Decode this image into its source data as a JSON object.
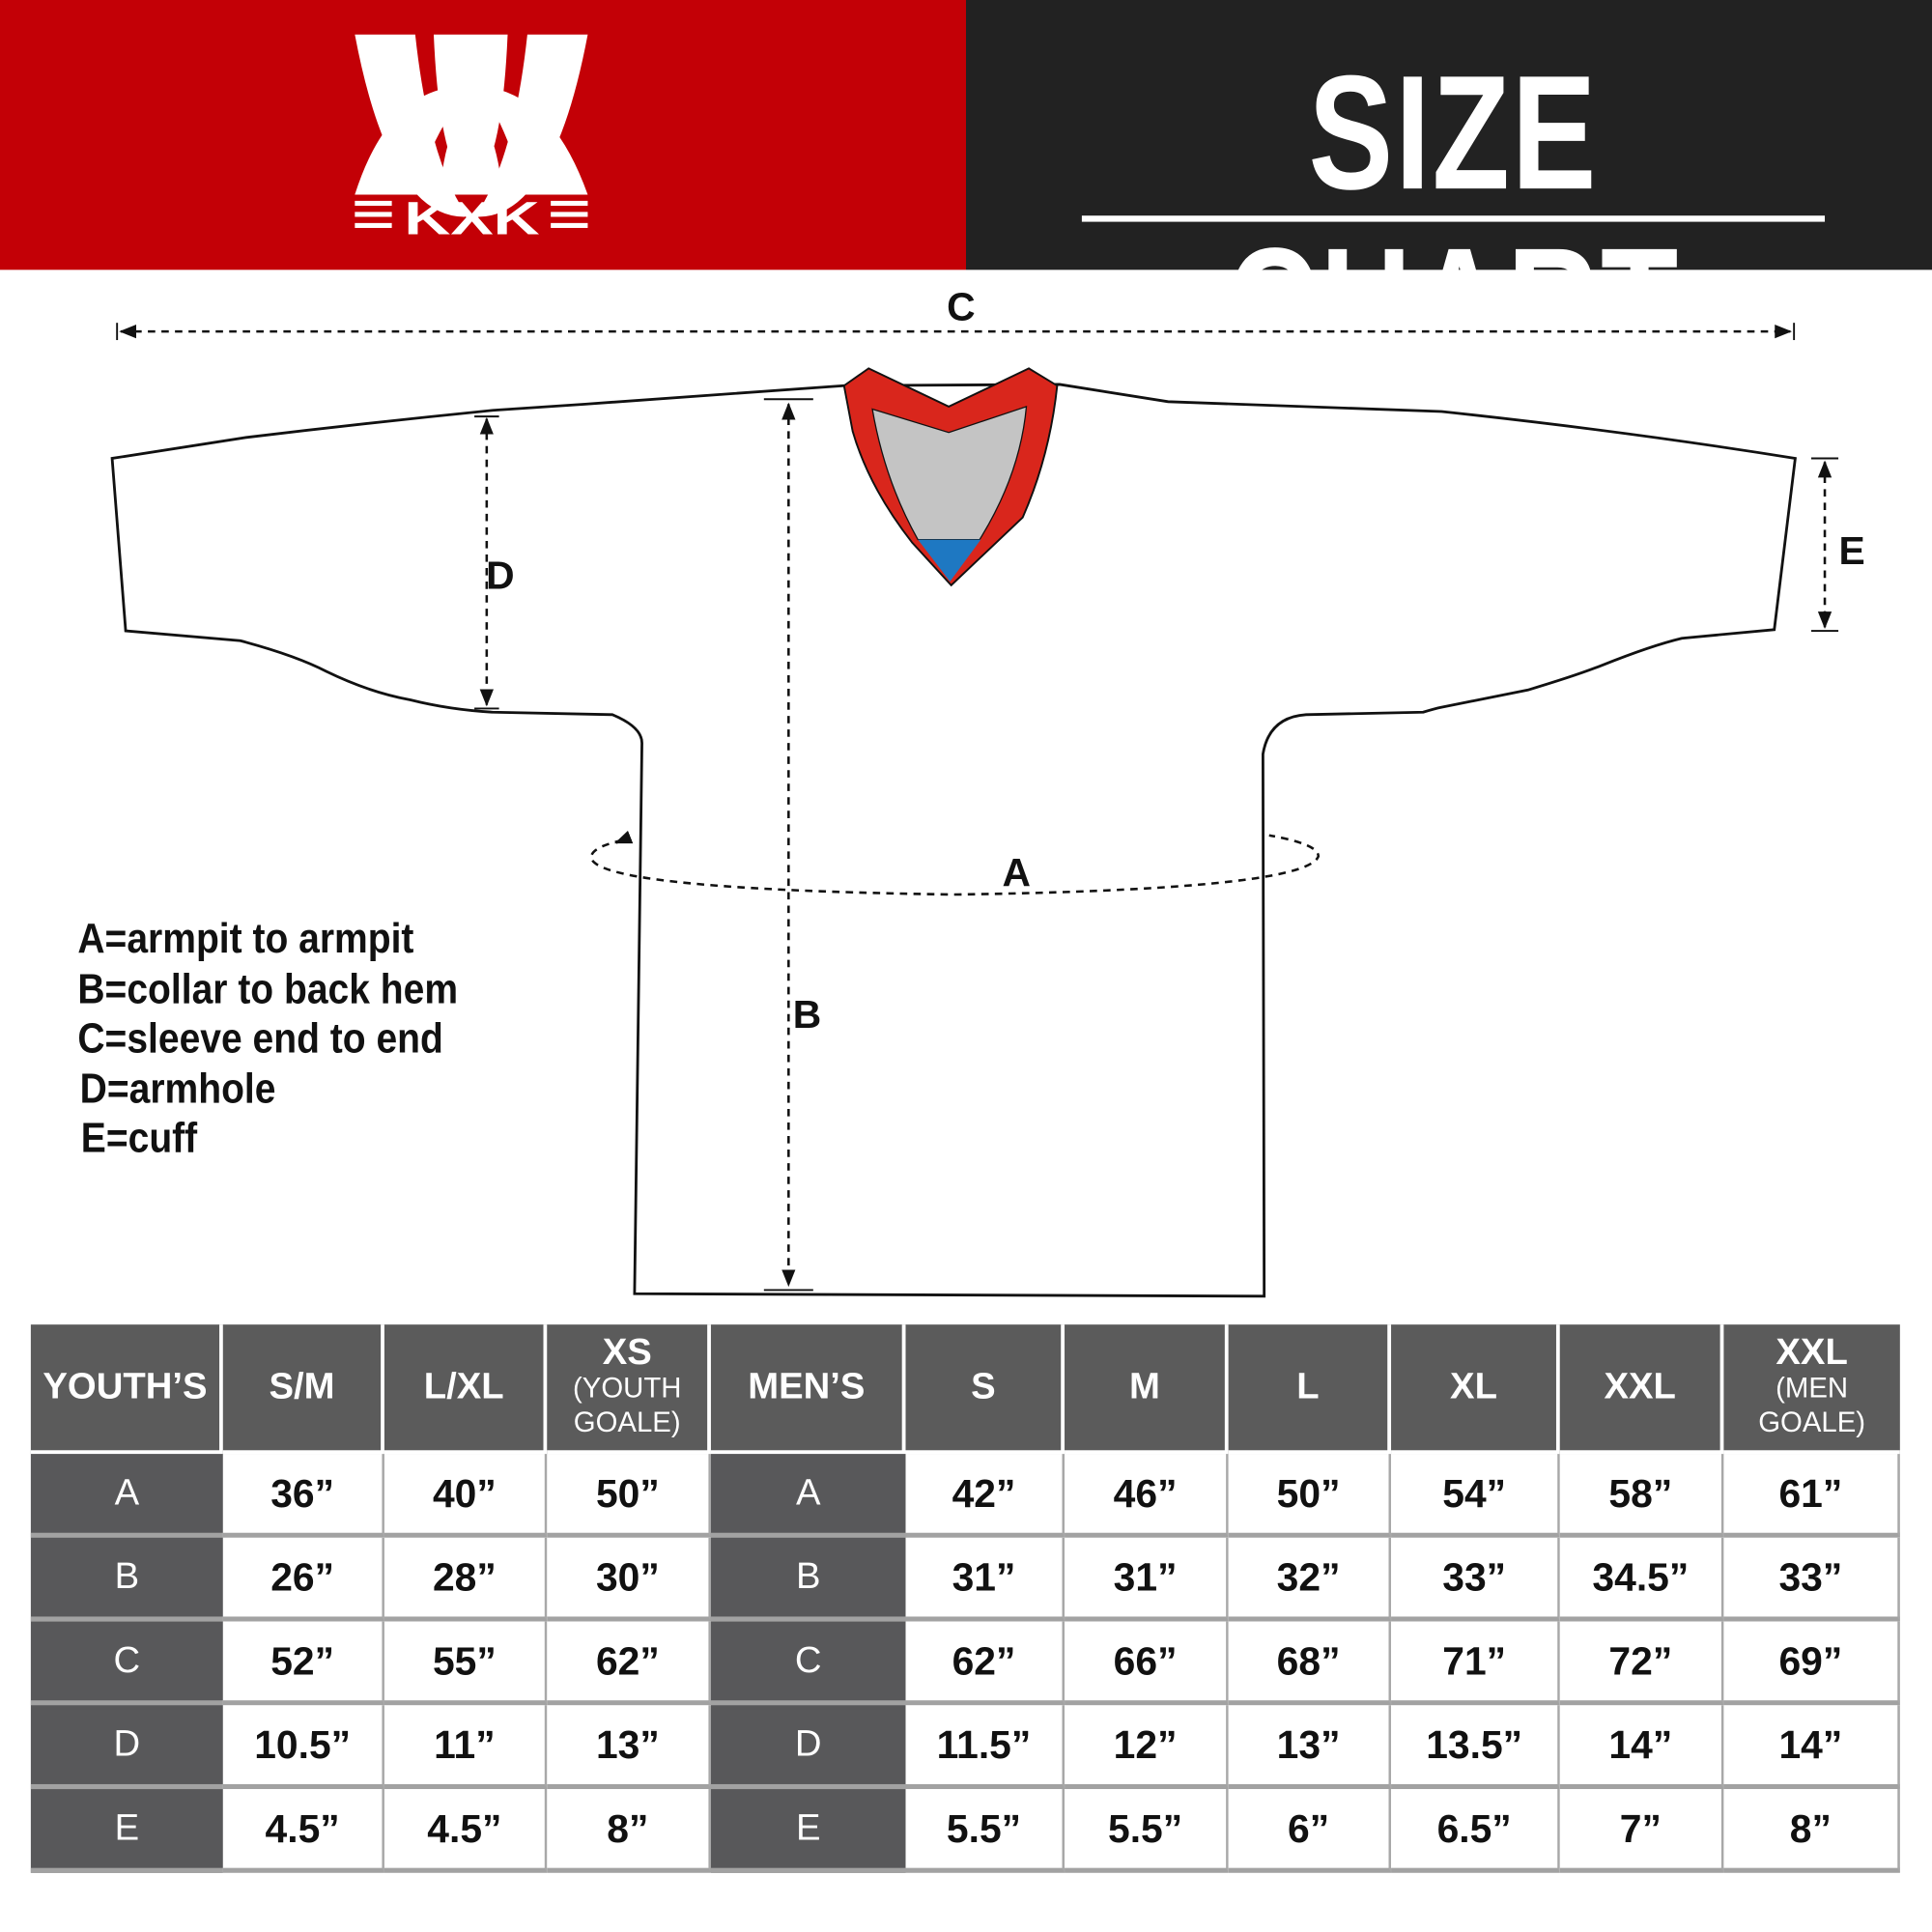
{
  "brand": {
    "logo_text": "KXK",
    "red": "#c30006",
    "dark": "#222222"
  },
  "header": {
    "title": "SIZE CHART"
  },
  "diagram": {
    "labels": {
      "a": "A",
      "b": "B",
      "c": "C",
      "d": "D",
      "e": "E"
    },
    "collar_colors": {
      "trim": "#d9261c",
      "inner": "#c4c4c4",
      "tip": "#1e78c2"
    }
  },
  "legend": [
    "A=armpit to armpit",
    "B=collar to back hem",
    "C=sleeve end to end",
    "D=armhole",
    "E=cuff"
  ],
  "table": {
    "youth_header": "YOUTH’S",
    "youth_sizes": [
      {
        "label": "S/M"
      },
      {
        "label": "L/XL"
      },
      {
        "label": "XS",
        "sub": "(YOUTH GOALE)"
      }
    ],
    "men_header": "MEN’S",
    "men_sizes": [
      {
        "label": "S"
      },
      {
        "label": "M"
      },
      {
        "label": "L"
      },
      {
        "label": "XL"
      },
      {
        "label": "XXL"
      },
      {
        "label": "XXL",
        "sub": "(MEN GOALE)"
      }
    ],
    "rows": [
      {
        "label": "A",
        "youth": [
          "36”",
          "40”",
          "50”"
        ],
        "men": [
          "42”",
          "46”",
          "50”",
          "54”",
          "58”",
          "61”"
        ]
      },
      {
        "label": "B",
        "youth": [
          "26”",
          "28”",
          "30”"
        ],
        "men": [
          "31”",
          "31”",
          "32”",
          "33”",
          "34.5”",
          "33”"
        ]
      },
      {
        "label": "C",
        "youth": [
          "52”",
          "55”",
          "62”"
        ],
        "men": [
          "62”",
          "66”",
          "68”",
          "71”",
          "72”",
          "69”"
        ]
      },
      {
        "label": "D",
        "youth": [
          "10.5”",
          "11”",
          "13”"
        ],
        "men": [
          "11.5”",
          "12”",
          "13”",
          "13.5”",
          "14”",
          "14”"
        ]
      },
      {
        "label": "E",
        "youth": [
          "4.5”",
          "4.5”",
          "8”"
        ],
        "men": [
          "5.5”",
          "5.5”",
          "6”",
          "6.5”",
          "7”",
          "8”"
        ]
      }
    ]
  }
}
